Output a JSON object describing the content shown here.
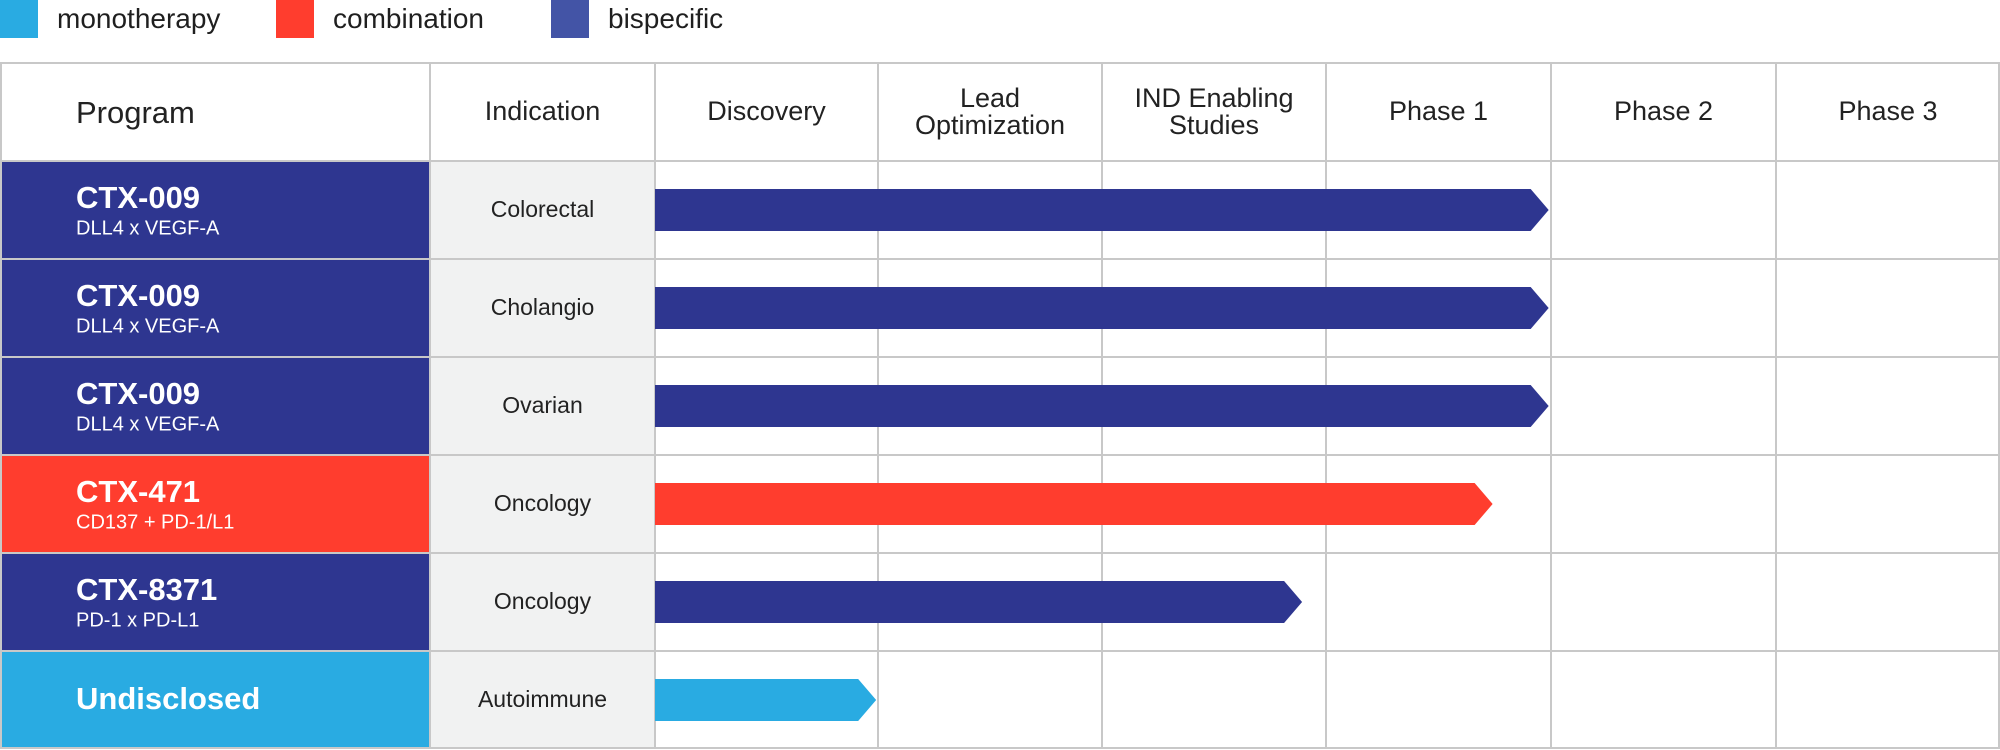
{
  "colors": {
    "monotherapy": "#29abe2",
    "combination": "#ff3d2e",
    "bispecific": "#2e3690",
    "legend_bispecific": "#4354a6",
    "indication_bg": "#f1f2f2"
  },
  "legend": [
    {
      "label": "monotherapy",
      "color_key": "monotherapy"
    },
    {
      "label": "combination",
      "color_key": "combination"
    },
    {
      "label": "bispecific",
      "color_key": "legend_bispecific"
    }
  ],
  "chart_data": {
    "type": "table",
    "columns": [
      "Program",
      "Indication",
      "Discovery",
      "Lead Optimization",
      "IND Enabling Studies",
      "Phase 1",
      "Phase 2",
      "Phase 3"
    ],
    "stages": [
      {
        "name": "Discovery",
        "lines": [
          "Discovery"
        ]
      },
      {
        "name": "Lead Optimization",
        "lines": [
          "Lead",
          "Optimization"
        ]
      },
      {
        "name": "IND Enabling Studies",
        "lines": [
          "IND Enabling",
          "Studies"
        ]
      },
      {
        "name": "Phase 1",
        "lines": [
          "Phase 1"
        ]
      },
      {
        "name": "Phase 2",
        "lines": [
          "Phase 2"
        ]
      },
      {
        "name": "Phase 3",
        "lines": [
          "Phase 3"
        ]
      }
    ],
    "rows": [
      {
        "program": "CTX-009",
        "target": "DLL4 x VEGF-A",
        "indication": "Colorectal",
        "modality": "bispecific",
        "progress_stages": 4.0
      },
      {
        "program": "CTX-009",
        "target": "DLL4 x VEGF-A",
        "indication": "Cholangio",
        "modality": "bispecific",
        "progress_stages": 4.0
      },
      {
        "program": "CTX-009",
        "target": "DLL4 x VEGF-A",
        "indication": "Ovarian",
        "modality": "bispecific",
        "progress_stages": 4.0
      },
      {
        "program": "CTX-471",
        "target": "CD137 + PD-1/L1",
        "indication": "Oncology",
        "modality": "combination",
        "progress_stages": 3.75
      },
      {
        "program": "CTX-8371",
        "target": "PD-1 x PD-L1",
        "indication": "Oncology",
        "modality": "bispecific",
        "progress_stages": 2.9
      },
      {
        "program": "Undisclosed",
        "target": "",
        "indication": "Autoimmune",
        "modality": "monotherapy",
        "progress_stages": 1.0
      }
    ]
  }
}
